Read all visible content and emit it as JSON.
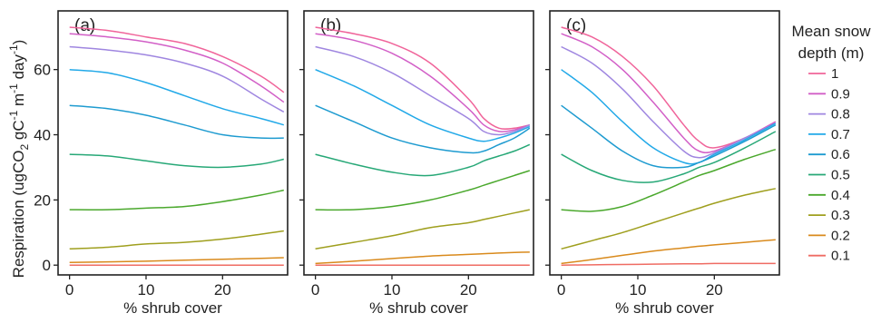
{
  "chart_data": {
    "type": "line",
    "ylabel_parts": {
      "pre": "Respiration (ugCO",
      "sub": "2",
      "mid1": " gC",
      "sup1": "-1",
      "mid2": " m",
      "sup2": "-1",
      "mid3": " day",
      "sup3": "-1",
      "post": ")"
    },
    "xlabel": "% shrub cover",
    "xlim": [
      -1.5,
      28.5
    ],
    "ylim": [
      -3,
      78
    ],
    "xticks": [
      0,
      10,
      20
    ],
    "yticks": [
      0,
      20,
      40,
      60
    ],
    "legend": {
      "title_line1": "Mean snow",
      "title_line2": "depth (m)",
      "placement": "right",
      "entries": [
        {
          "label": "1",
          "color": "#f0649a"
        },
        {
          "label": "0.9",
          "color": "#d25fc7"
        },
        {
          "label": "0.8",
          "color": "#9f86e0"
        },
        {
          "label": "0.7",
          "color": "#22a9e8"
        },
        {
          "label": "0.6",
          "color": "#1e9bd0"
        },
        {
          "label": "0.5",
          "color": "#27a877"
        },
        {
          "label": "0.4",
          "color": "#4aa82c"
        },
        {
          "label": "0.3",
          "color": "#9f9f1e"
        },
        {
          "label": "0.2",
          "color": "#d98a1c"
        },
        {
          "label": "0.1",
          "color": "#ef6c63"
        }
      ]
    },
    "panels": [
      {
        "tag": "(a)",
        "x": [
          0,
          5,
          10,
          15,
          20,
          25,
          28
        ],
        "series": [
          {
            "snow": "1",
            "values": [
              73,
              72,
              70,
              68,
              64,
              58,
              53
            ]
          },
          {
            "snow": "0.9",
            "values": [
              71,
              70,
              68.5,
              66,
              62,
              55,
              50
            ]
          },
          {
            "snow": "0.8",
            "values": [
              67,
              66,
              64.5,
              62,
              58,
              51,
              47
            ]
          },
          {
            "snow": "0.7",
            "values": [
              60,
              59,
              56,
              52,
              48,
              45,
              43
            ]
          },
          {
            "snow": "0.6",
            "values": [
              49,
              48,
              46,
              43,
              40,
              39,
              39
            ]
          },
          {
            "snow": "0.5",
            "values": [
              34,
              33.5,
              32,
              30.5,
              30,
              31,
              32.5
            ]
          },
          {
            "snow": "0.4",
            "values": [
              17,
              17,
              17.5,
              18,
              19.5,
              21.5,
              23
            ]
          },
          {
            "snow": "0.3",
            "values": [
              5,
              5.5,
              6.5,
              7,
              8,
              9.5,
              10.5
            ]
          },
          {
            "snow": "0.2",
            "values": [
              0.8,
              1,
              1.2,
              1.5,
              1.8,
              2.1,
              2.3
            ]
          },
          {
            "snow": "0.1",
            "values": [
              0,
              0,
              0,
              0,
              0,
              0,
              0
            ]
          }
        ]
      },
      {
        "tag": "(b)",
        "x": [
          0,
          5,
          10,
          15,
          20,
          22,
          24,
          26,
          28
        ],
        "series": [
          {
            "snow": "1",
            "values": [
              73,
              71,
              68,
              62,
              51,
              45,
              42,
              42,
              43
            ]
          },
          {
            "snow": "0.9",
            "values": [
              71,
              69,
              65,
              58,
              48,
              43,
              41,
              41.5,
              43
            ]
          },
          {
            "snow": "0.8",
            "values": [
              67,
              64,
              59,
              52,
              45,
              41,
              40,
              41,
              43
            ]
          },
          {
            "snow": "0.7",
            "values": [
              60,
              55,
              49,
              43,
              39,
              38,
              39,
              40.5,
              42.5
            ]
          },
          {
            "snow": "0.6",
            "values": [
              49,
              44,
              39,
              36,
              34.5,
              35,
              37,
              39,
              42
            ]
          },
          {
            "snow": "0.5",
            "values": [
              34,
              31,
              28.5,
              27.5,
              30,
              32,
              33.5,
              35,
              37
            ]
          },
          {
            "snow": "0.4",
            "values": [
              17,
              17,
              18,
              20,
              23,
              24.5,
              26,
              27.5,
              29
            ]
          },
          {
            "snow": "0.3",
            "values": [
              5,
              7,
              9,
              11.5,
              13,
              14,
              15,
              16,
              17
            ]
          },
          {
            "snow": "0.2",
            "values": [
              0.5,
              1.2,
              2,
              2.8,
              3.3,
              3.5,
              3.7,
              3.9,
              4
            ]
          },
          {
            "snow": "0.1",
            "values": [
              0,
              0,
              0,
              0,
              0,
              0,
              0,
              0,
              0
            ]
          }
        ]
      },
      {
        "tag": "(c)",
        "x": [
          0,
          4,
          8,
          12,
          16,
          18,
          20,
          24,
          28
        ],
        "series": [
          {
            "snow": "1",
            "values": [
              73,
              70,
              64,
              55,
              43,
              38,
              36,
              39,
              44
            ]
          },
          {
            "snow": "0.9",
            "values": [
              71,
              67,
              60,
              50,
              39,
              35,
              35,
              39,
              44
            ]
          },
          {
            "snow": "0.8",
            "values": [
              67,
              62,
              54,
              44,
              35,
              33,
              34.5,
              39,
              43.5
            ]
          },
          {
            "snow": "0.7",
            "values": [
              60,
              53,
              44,
              36,
              31.5,
              31.5,
              34,
              38.5,
              43.5
            ]
          },
          {
            "snow": "0.6",
            "values": [
              49,
              42,
              35,
              30.5,
              30,
              31.5,
              33.5,
              38,
              43
            ]
          },
          {
            "snow": "0.5",
            "values": [
              34,
              29,
              26,
              25.5,
              28,
              30,
              31.5,
              36,
              41
            ]
          },
          {
            "snow": "0.4",
            "values": [
              17,
              16.5,
              18,
              21.5,
              25.5,
              27.5,
              29,
              32.5,
              35.5
            ]
          },
          {
            "snow": "0.3",
            "values": [
              5,
              7.5,
              10,
              13,
              16,
              17.5,
              19,
              21.5,
              23.5
            ]
          },
          {
            "snow": "0.2",
            "values": [
              0.5,
              1.7,
              3,
              4.3,
              5.3,
              5.8,
              6.2,
              7,
              7.8
            ]
          },
          {
            "snow": "0.1",
            "values": [
              0,
              0.1,
              0.2,
              0.3,
              0.4,
              0.4,
              0.5,
              0.5,
              0.5
            ]
          }
        ]
      }
    ]
  }
}
